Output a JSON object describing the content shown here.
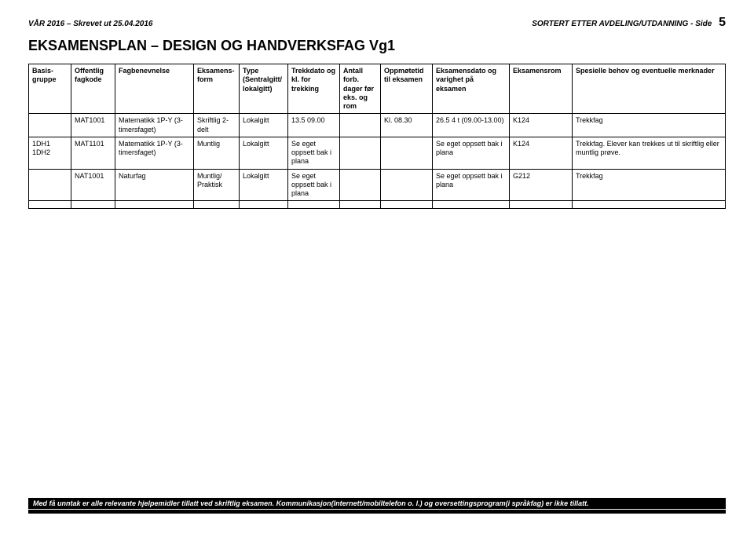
{
  "header": {
    "left": "VÅR 2016 – Skrevet ut 25.04.2016",
    "right_label": "SORTERT ETTER AVDELING/UTDANNING  -  Side",
    "page_number": "5"
  },
  "title": "EKSAMENSPLAN – DESIGN OG HANDVERKSFAG Vg1",
  "columns": {
    "basis": "Basis-gruppe",
    "fagkode": "Offentlig fagkode",
    "fagben": "Fagbenevnelse",
    "eksform": "Eksamens-form",
    "type": "Type (Sentralgitt/ lokalgitt)",
    "trekk": "Trekkdato og kl. for trekking",
    "antall": "Antall forb. dager før eks. og rom",
    "oppm": "Oppmøtetid til eksamen",
    "eksdato": "Eksamensdato og varighet på eksamen",
    "eksrom": "Eksamensrom",
    "spes": "Spesielle behov og eventuelle merknader"
  },
  "rows": [
    {
      "basis": "",
      "fagkode": "MAT1001",
      "fagben": "Matematikk 1P-Y (3-timersfaget)",
      "eksform": "Skriftlig 2-delt",
      "type": "Lokalgitt",
      "trekk": "13.5 09.00",
      "antall": "",
      "oppm": "Kl. 08.30",
      "eksdato": "26.5\n4 t (09.00-13.00)",
      "eksrom": "K124",
      "spes": "Trekkfag"
    },
    {
      "basis": "1DH1\n1DH2",
      "fagkode": "MAT1101",
      "fagben": "Matematikk 1P-Y (3-timersfaget)",
      "eksform": "Muntlig",
      "type": "Lokalgitt",
      "trekk": "Se eget oppsett bak i plana",
      "antall": "",
      "oppm": "",
      "eksdato": "Se eget oppsett bak i plana",
      "eksrom": "K124",
      "spes": "Trekkfag. Elever kan trekkes ut til skriftlig eller muntlig prøve."
    },
    {
      "basis": "",
      "fagkode": "NAT1001",
      "fagben": "Naturfag",
      "eksform": "Muntlig/ Praktisk",
      "type": "Lokalgitt",
      "trekk": "Se eget oppsett bak i plana",
      "antall": "",
      "oppm": "",
      "eksdato": "Se eget oppsett bak i plana",
      "eksrom": "G212",
      "spes": "Trekkfag"
    }
  ],
  "footer": "Med få unntak er alle relevante hjelpemidler tillatt ved skriftlig eksamen. Kommunikasjon(Internett/mobiltelefon o. l.) og oversettingsprogram(i språkfag) er ikke tillatt."
}
